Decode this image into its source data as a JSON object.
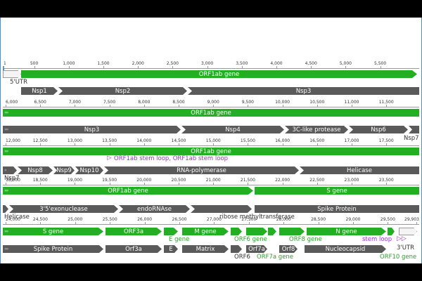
{
  "colors": {
    "gene": "#22b022",
    "protein": "#5a5a5a",
    "utr": "#f4f4f4",
    "stem_loop": "#9933cc",
    "axis": "#9a9a9a",
    "border": "#4a90d9"
  },
  "rows": [
    {
      "ticks": [
        "1",
        "500",
        "1,000",
        "1,500",
        "2,000",
        "2,500",
        "3,000",
        "3,500",
        "4,000",
        "4,500",
        "5,000",
        "5,500"
      ],
      "features": [
        {
          "id": "utr5",
          "label": "5'UTR",
          "kind": "utr"
        },
        {
          "id": "orf1ab-gene-1",
          "label": "ORF1ab gene",
          "kind": "gene"
        },
        {
          "id": "nsp1",
          "label": "Nsp1",
          "kind": "protein"
        },
        {
          "id": "nsp2",
          "label": "Nsp2",
          "kind": "protein"
        },
        {
          "id": "nsp3-a",
          "label": "Nsp3",
          "kind": "protein"
        }
      ]
    },
    {
      "ticks": [
        "6,000",
        "6,500",
        "7,000",
        "7,500",
        "8,000",
        "8,500",
        "9,000",
        "9,500",
        "10,000",
        "10,500",
        "11,000",
        "11,500"
      ],
      "features": [
        {
          "id": "orf1ab-gene-2",
          "label": "ORF1ab gene",
          "kind": "gene"
        },
        {
          "id": "nsp3-b",
          "label": "Nsp3",
          "kind": "protein"
        },
        {
          "id": "nsp4",
          "label": "Nsp4",
          "kind": "protein"
        },
        {
          "id": "3c-like-protease",
          "label": "3C-like protease",
          "kind": "protein"
        },
        {
          "id": "nsp6",
          "label": "Nsp6",
          "kind": "protein"
        },
        {
          "id": "nsp7-a",
          "label": "Nsp7",
          "kind": "protein"
        }
      ]
    },
    {
      "ticks": [
        "12,000",
        "12,500",
        "13,000",
        "13,500",
        "14,000",
        "14,500",
        "15,000",
        "15,500",
        "16,000",
        "16,500",
        "17,000",
        "17,500"
      ],
      "features": [
        {
          "id": "orf1ab-gene-3",
          "label": "ORF1ab gene",
          "kind": "gene"
        },
        {
          "id": "orf1ab-stem-loop",
          "label": "ORF1ab stem loop, ORF1ab stem loop",
          "kind": "stem"
        },
        {
          "id": "nsp7-b",
          "label": "Nsp7",
          "kind": "protein"
        },
        {
          "id": "nsp8",
          "label": "Nsp8",
          "kind": "protein"
        },
        {
          "id": "nsp9",
          "label": "Nsp9",
          "kind": "protein"
        },
        {
          "id": "nsp10",
          "label": "Nsp10",
          "kind": "protein"
        },
        {
          "id": "rna-polymerase",
          "label": "RNA-polymerase",
          "kind": "protein"
        },
        {
          "id": "helicase-a",
          "label": "Helicase",
          "kind": "protein"
        }
      ]
    },
    {
      "ticks": [
        "18,000",
        "18,500",
        "19,000",
        "19,500",
        "20,000",
        "20,500",
        "21,000",
        "21,500",
        "22,000",
        "22,500",
        "23,000",
        "23,500"
      ],
      "features": [
        {
          "id": "orf1ab-gene-4",
          "label": "ORF1ab gene",
          "kind": "gene"
        },
        {
          "id": "s-gene-a",
          "label": "S gene",
          "kind": "gene"
        },
        {
          "id": "helicase-b",
          "label": "Helicase",
          "kind": "protein"
        },
        {
          "id": "exonuclease",
          "label": "3'5'exonuclease",
          "kind": "protein"
        },
        {
          "id": "endornase",
          "label": "endoRNAse",
          "kind": "protein"
        },
        {
          "id": "ribose-methyltransferase",
          "label": "ribose methyltransferase",
          "kind": "protein"
        },
        {
          "id": "spike-protein-a",
          "label": "Spike Protein",
          "kind": "protein"
        }
      ]
    },
    {
      "ticks": [
        "24,000",
        "24,500",
        "25,000",
        "25,500",
        "26,000",
        "26,500",
        "27,000",
        "27,500",
        "28,000",
        "28,500",
        "29,000",
        "29,500",
        "29,903"
      ],
      "features": [
        {
          "id": "s-gene-b",
          "label": "S gene",
          "kind": "gene"
        },
        {
          "id": "orf3a-gene",
          "label": "ORF3a",
          "kind": "gene"
        },
        {
          "id": "e-gene",
          "label": "E gene",
          "kind": "gene"
        },
        {
          "id": "m-gene",
          "label": "M gene",
          "kind": "gene"
        },
        {
          "id": "orf6-gene",
          "label": "ORF6 gene",
          "kind": "gene"
        },
        {
          "id": "orf7a-gene",
          "label": "",
          "kind": "gene"
        },
        {
          "id": "orf8-gene",
          "label": "ORF8 gene",
          "kind": "gene"
        },
        {
          "id": "n-gene",
          "label": "N gene",
          "kind": "gene"
        },
        {
          "id": "stem-loop",
          "label": "stem loop",
          "kind": "stem"
        },
        {
          "id": "utr3",
          "label": "3'UTR",
          "kind": "utr"
        },
        {
          "id": "spike-protein-b",
          "label": "Spike Protein",
          "kind": "protein"
        },
        {
          "id": "orf3a-protein",
          "label": "Orf3a",
          "kind": "protein"
        },
        {
          "id": "e-protein",
          "label": "E",
          "kind": "protein"
        },
        {
          "id": "matrix",
          "label": "Matrix",
          "kind": "protein"
        },
        {
          "id": "orf6-protein",
          "label": "ORF6",
          "kind": "protein"
        },
        {
          "id": "orf7a-protein",
          "label": "Orf7a",
          "kind": "protein"
        },
        {
          "id": "orf7a-gene-label",
          "label": "ORF7a gene",
          "kind": "gene"
        },
        {
          "id": "orf8-protein",
          "label": "Orf8",
          "kind": "protein"
        },
        {
          "id": "nucleocapsid",
          "label": "Nucleocapsid",
          "kind": "protein"
        },
        {
          "id": "orf10-gene",
          "label": "ORF10 gene",
          "kind": "gene"
        }
      ]
    }
  ]
}
